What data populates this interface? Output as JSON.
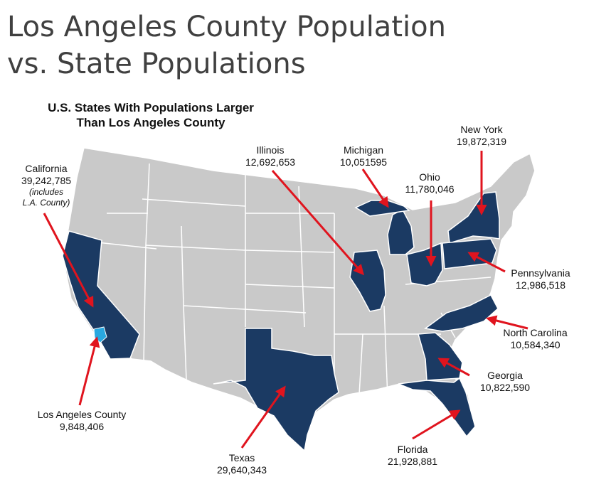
{
  "title": {
    "line1": "Los Angeles County Population",
    "line2": "vs. State Populations"
  },
  "map": {
    "subtitle": {
      "line1": "U.S. States With Populations Larger",
      "line2": "Than Los Angeles County"
    },
    "colors": {
      "highlight": "#1b3a63",
      "county": "#29a8e0",
      "other": "#c9c9c9",
      "border": "#ffffff",
      "arrow": "#e0141e"
    },
    "labels": {
      "california": {
        "name": "California",
        "population": "39,242,785",
        "note1": "(includes",
        "note2": "L.A. County)"
      },
      "los_angeles_county": {
        "name": "Los Angeles County",
        "population": "9,848,406"
      },
      "texas": {
        "name": "Texas",
        "population": "29,640,343"
      },
      "florida": {
        "name": "Florida",
        "population": "21,928,881"
      },
      "new_york": {
        "name": "New York",
        "population": "19,872,319"
      },
      "illinois": {
        "name": "Illinois",
        "population": "12,692,653"
      },
      "michigan": {
        "name": "Michigan",
        "population": "10,051595"
      },
      "ohio": {
        "name": "Ohio",
        "population": "11,780,046"
      },
      "pennsylvania": {
        "name": "Pennsylvania",
        "population": "12,986,518"
      },
      "north_carolina": {
        "name": "North Carolina",
        "population": "10,584,340"
      },
      "georgia": {
        "name": "Georgia",
        "population": "10,822,590"
      }
    }
  }
}
